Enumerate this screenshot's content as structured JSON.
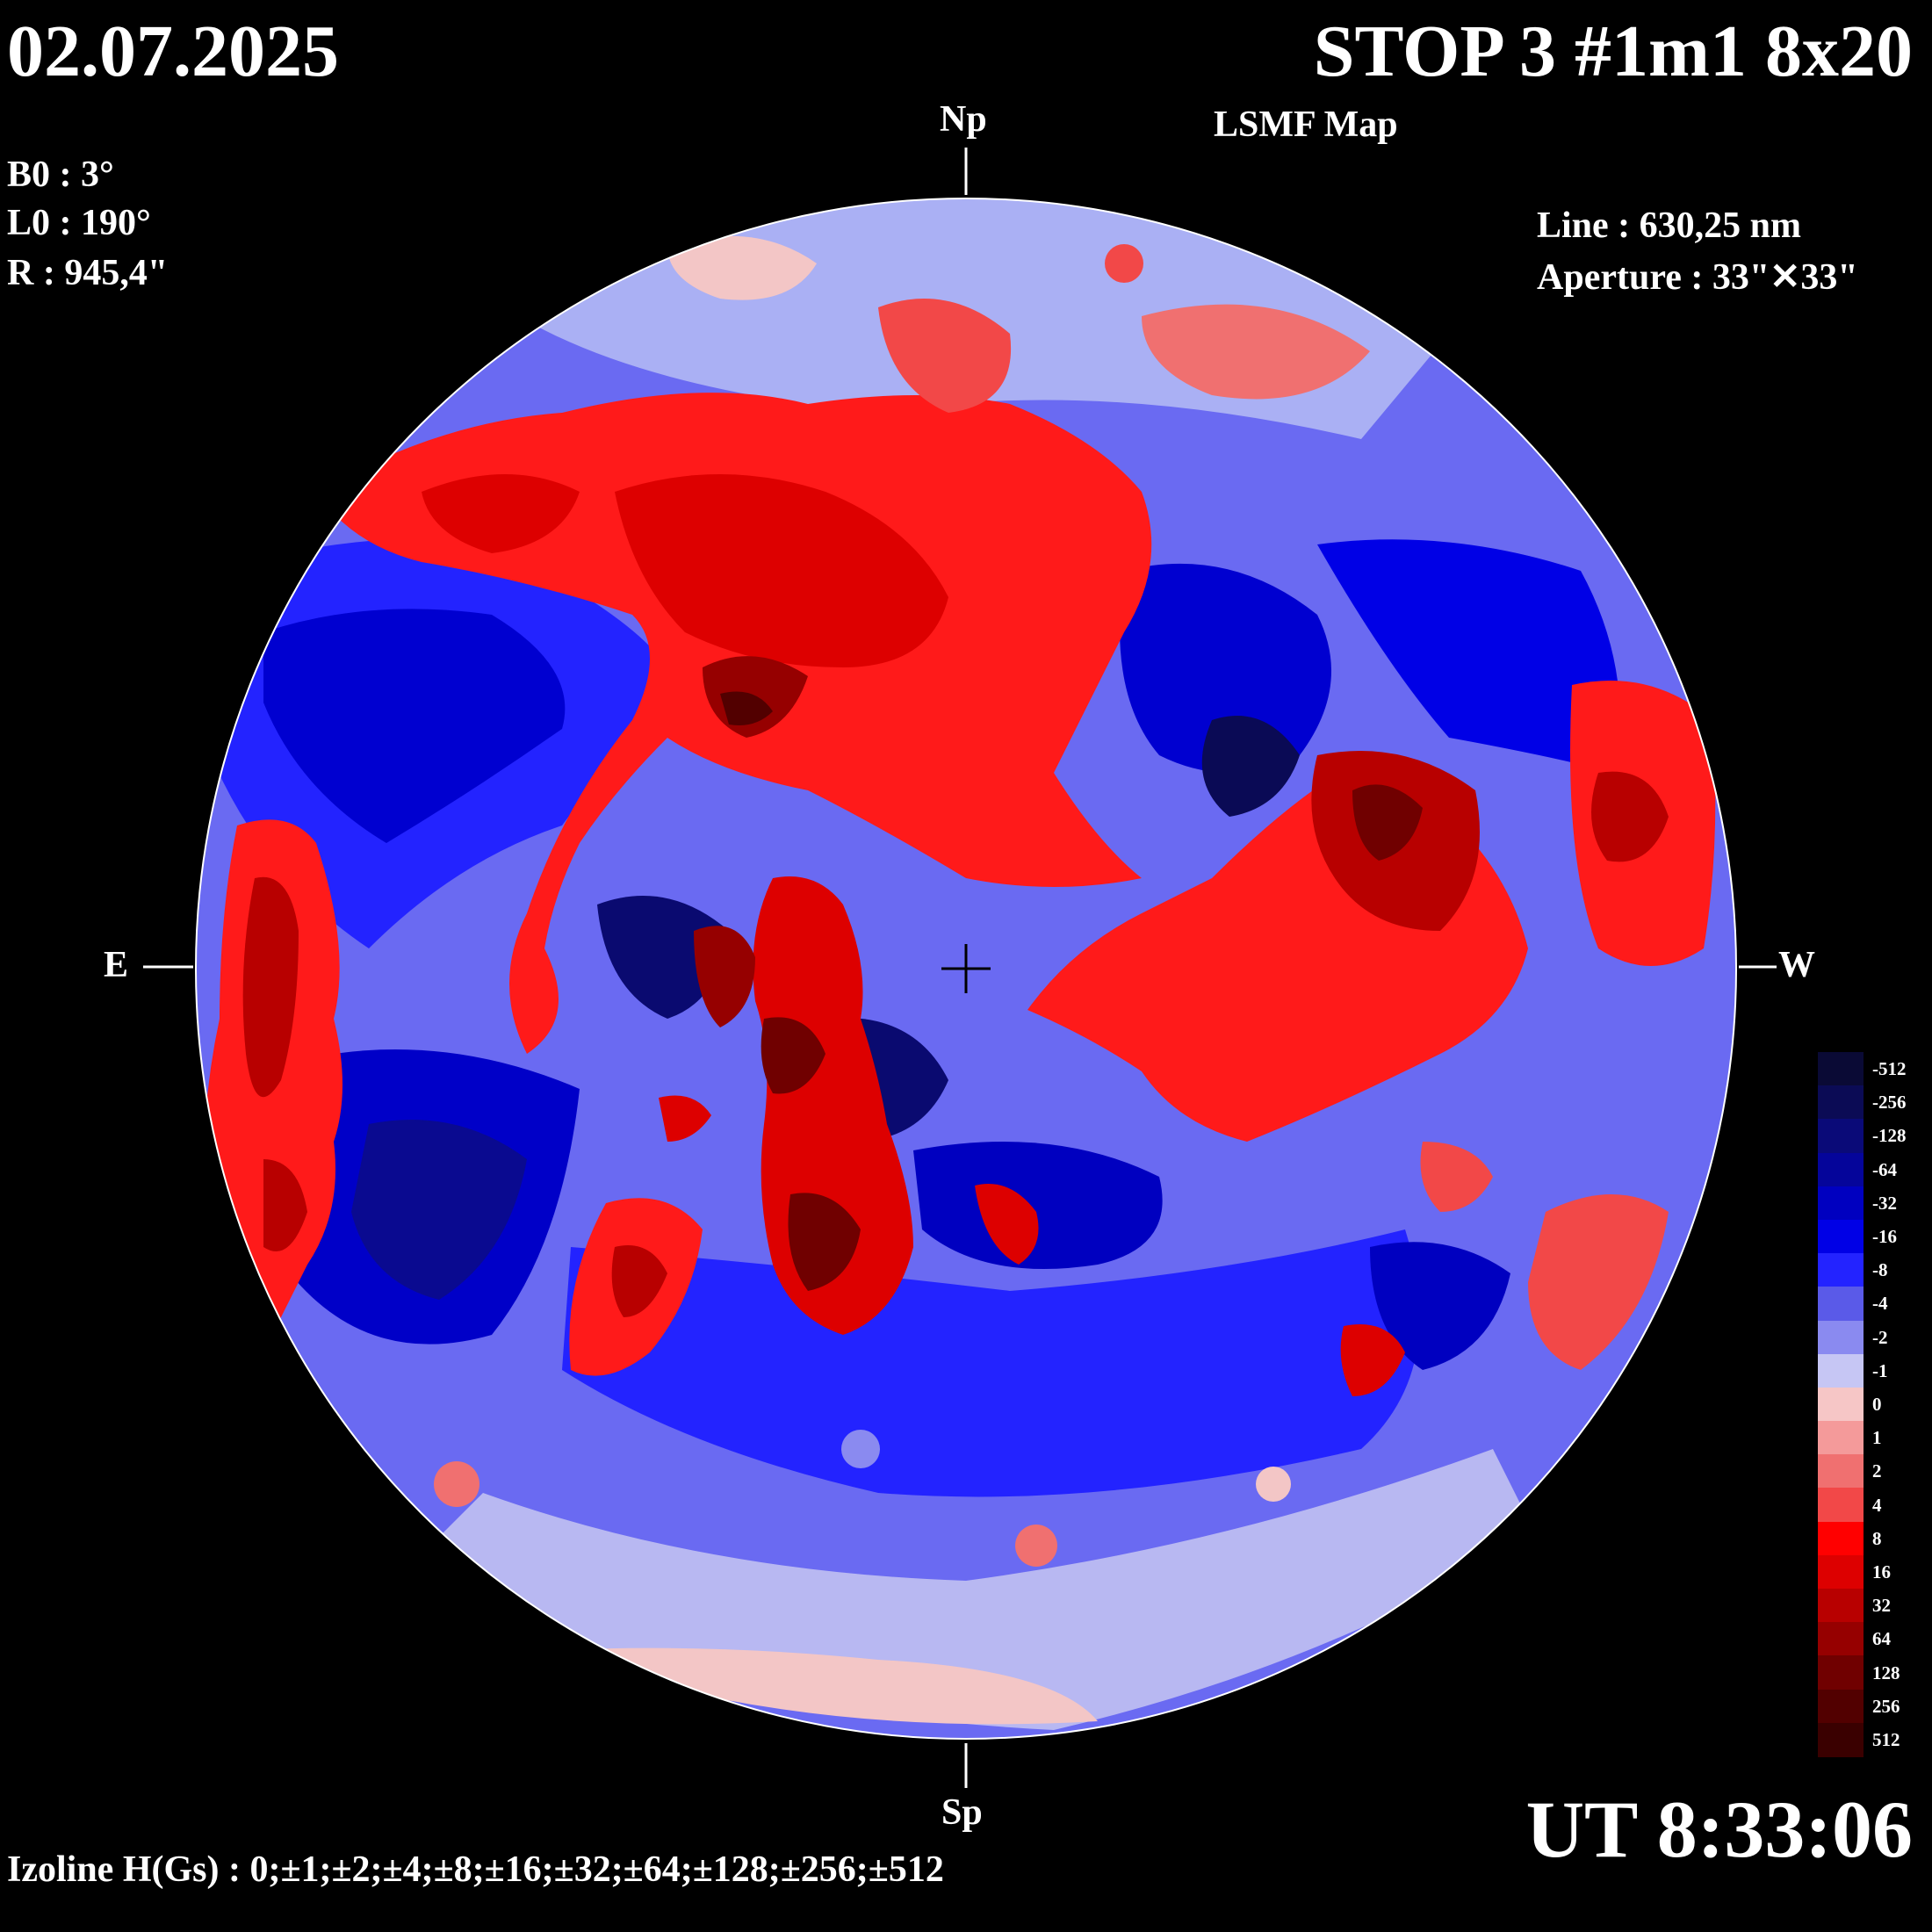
{
  "header": {
    "date": "02.07.2025",
    "title": "STOP 3 #1m1 8x20",
    "subtitle": "LSMF  Map"
  },
  "params": {
    "b0": "B0 : 3°",
    "l0": "L0 : 190°",
    "r": "R  : 945,4\""
  },
  "instrument": {
    "line": "Line :  630,25 nm",
    "aperture": "Aperture : 33\"✕33\""
  },
  "directions": {
    "north": "Np",
    "south": "Sp",
    "east": "E",
    "west": "W"
  },
  "time": "UT 8:33:06",
  "izoline": "Izoline H(Gs) : 0;±1;±2;±4;±8;±16;±32;±64;±128;±256;±512",
  "scale": {
    "labels": [
      "-512",
      "-256",
      "-128",
      "-64",
      "-32",
      "-16",
      "-8",
      "-4",
      "-2",
      "-1",
      "0",
      "1",
      "2",
      "4",
      "8",
      "16",
      "32",
      "64",
      "128",
      "256",
      "512"
    ],
    "colors": [
      "#0a0a35",
      "#0b0b55",
      "#0a0a78",
      "#05059a",
      "#0000c0",
      "#0000e6",
      "#2323ff",
      "#5a5ae8",
      "#8a8af0",
      "#c6c6f4",
      "#f6c6c6",
      "#f49a9a",
      "#f07070",
      "#f24848",
      "#ff0000",
      "#dd0000",
      "#b80000",
      "#960000",
      "#700000",
      "#520000",
      "#3a0000"
    ]
  },
  "colors": {
    "positive": "#ff0000",
    "negative": "#0000e6",
    "neutral_line": "#ffffff",
    "background": "#000000"
  }
}
